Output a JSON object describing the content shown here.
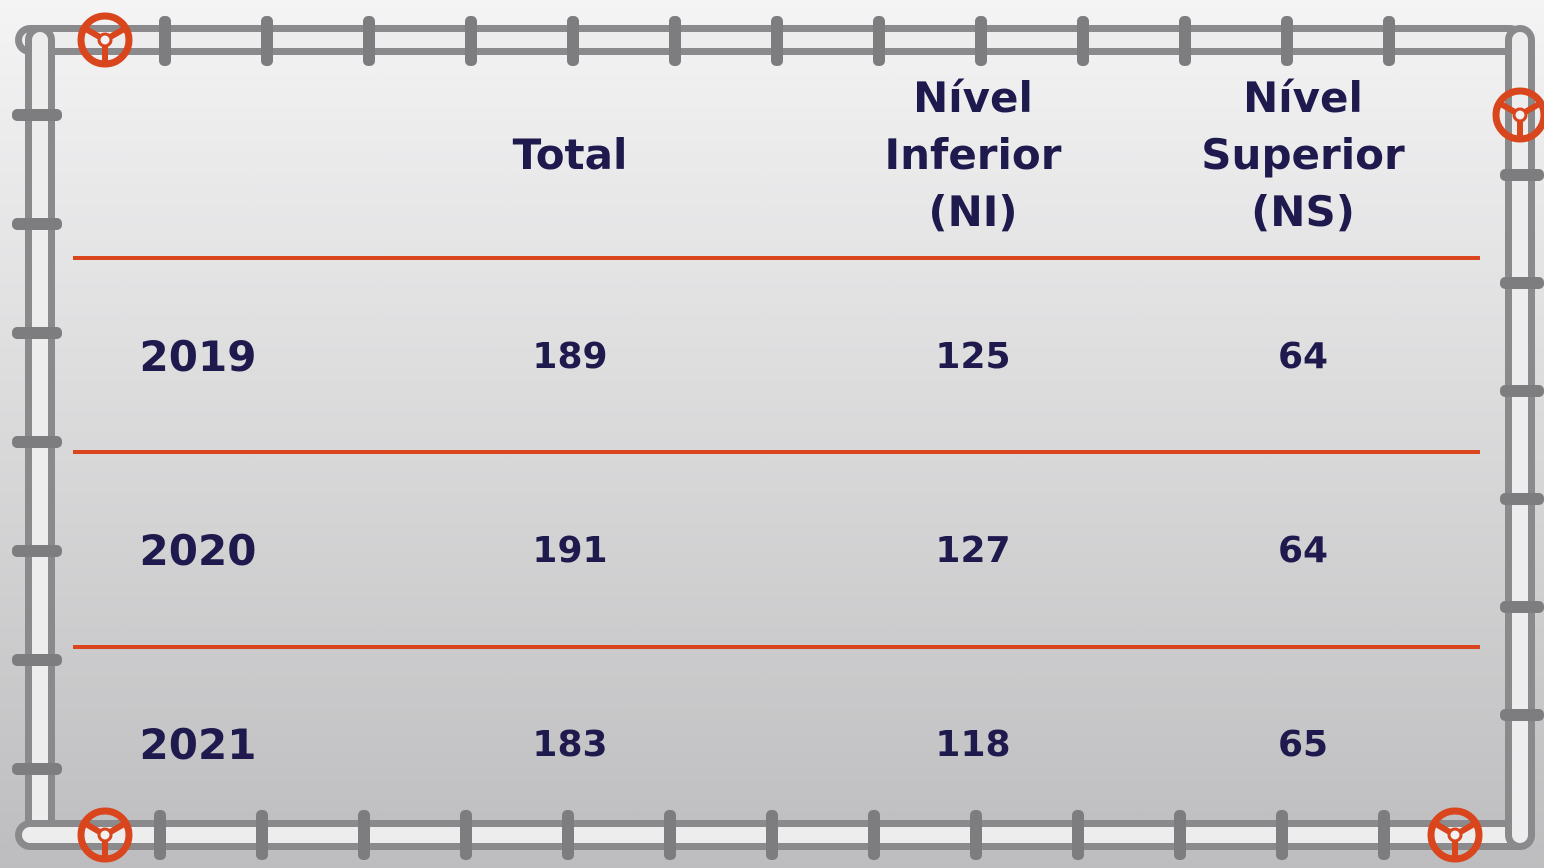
{
  "table": {
    "header": [
      "Total",
      "Nível Inferior (NI)",
      "Nível Superior (NS)"
    ],
    "rows": [
      [
        "2019",
        "189",
        "125",
        "64"
      ],
      [
        "2020",
        "191",
        "127",
        "64"
      ],
      [
        "2021",
        "183",
        "118",
        "65"
      ]
    ]
  }
}
